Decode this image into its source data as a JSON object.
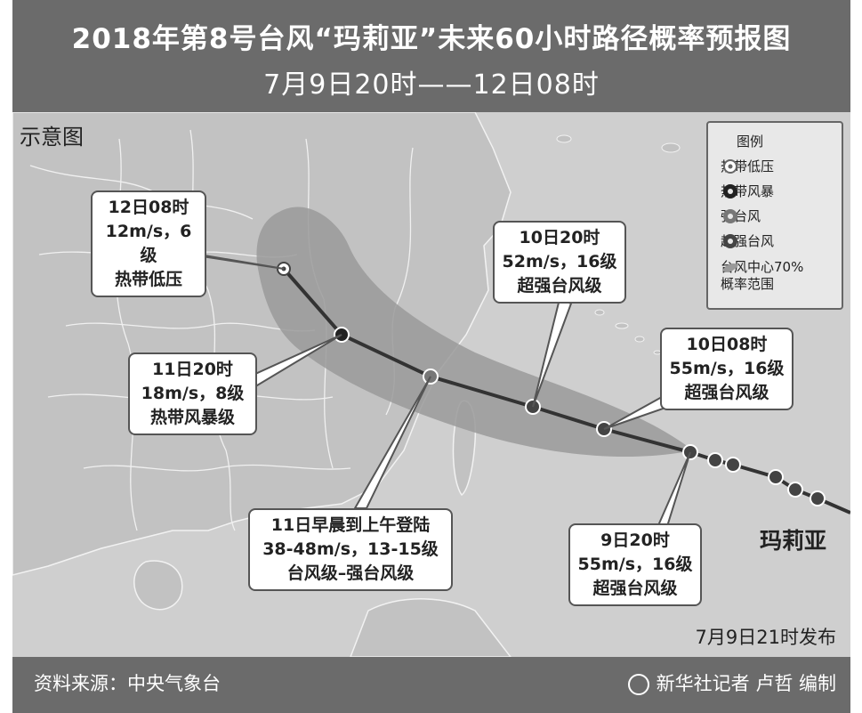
{
  "title": "2018年第8号台风“玛莉亚”未来60小时路径概率预报图",
  "subtitle": "7月9日20时——12日08时",
  "map_label": "示意图",
  "storm_name": "玛莉亚",
  "publish_time": "7月9日21时发布",
  "footer": {
    "source": "资料来源：中央气象台",
    "credit": "新华社记者 卢哲 编制"
  },
  "legend": {
    "title": "图例",
    "items": [
      {
        "label": "热带低压",
        "icon": "tropical-depression-icon"
      },
      {
        "label": "热带风暴",
        "icon": "tropical-storm-icon"
      },
      {
        "label": "强台风",
        "icon": "severe-typhoon-icon"
      },
      {
        "label": "超强台风",
        "icon": "super-typhoon-icon"
      },
      {
        "label": "台风中心70%概率范围",
        "label_line1": "台风中心70%",
        "label_line2": "概率范围",
        "icon": "probability-cone-icon"
      }
    ]
  },
  "callouts": [
    {
      "time": "12日08时",
      "wind": "12m/s，6级",
      "level": "热带低压"
    },
    {
      "time": "11日20时",
      "wind": "18m/s，8级",
      "level": "热带风暴级"
    },
    {
      "time": "11日早晨到上午登陆",
      "wind": "38-48m/s，13-15级",
      "level": "台风级–强台风级"
    },
    {
      "time": "10日20时",
      "wind": "52m/s，16级",
      "level": "超强台风级"
    },
    {
      "time": "10日08时",
      "wind": "55m/s，16级",
      "level": "超强台风级"
    },
    {
      "time": "9日20时",
      "wind": "55m/s，16级",
      "level": "超强台风级"
    }
  ],
  "colors": {
    "frame": "#6b6b6b",
    "sea_land": "#cfcfcf",
    "cone": "#9a9a9a",
    "track": "#333333"
  }
}
